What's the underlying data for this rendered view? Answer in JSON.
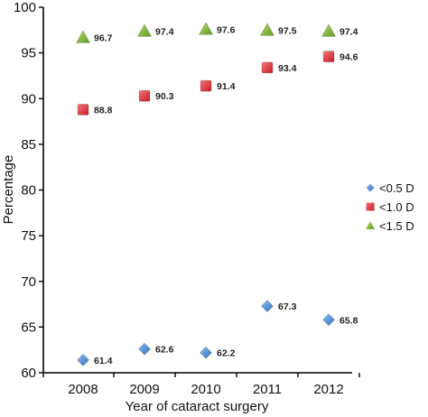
{
  "chart_data": {
    "type": "scatter",
    "xlabel": "Year of cataract surgery",
    "ylabel": "Percentage",
    "categories": [
      "2008",
      "2009",
      "2010",
      "2011",
      "2012"
    ],
    "ylim": [
      60,
      100
    ],
    "yticks": [
      60,
      65,
      70,
      75,
      80,
      85,
      90,
      95,
      100
    ],
    "grid": false,
    "legend_position": "right",
    "series": [
      {
        "name": "<0.5 D",
        "marker": "diamond",
        "color": "#3a7fd0",
        "values": [
          61.4,
          62.6,
          62.2,
          67.3,
          65.8
        ],
        "labels": [
          "61.4",
          "62.6",
          "62.2",
          "67.3",
          "65.8"
        ]
      },
      {
        "name": "<1.0 D",
        "marker": "square",
        "color": "#e0282e",
        "values": [
          88.8,
          90.3,
          91.4,
          93.4,
          94.6
        ],
        "labels": [
          "88.8",
          "90.3",
          "91.4",
          "93.4",
          "94.6"
        ]
      },
      {
        "name": "<1.5 D",
        "marker": "triangle",
        "color": "#7ab32e",
        "values": [
          96.7,
          97.4,
          97.6,
          97.5,
          97.4
        ],
        "labels": [
          "96.7",
          "97.4",
          "97.6",
          "97.5",
          "97.4"
        ]
      }
    ]
  }
}
